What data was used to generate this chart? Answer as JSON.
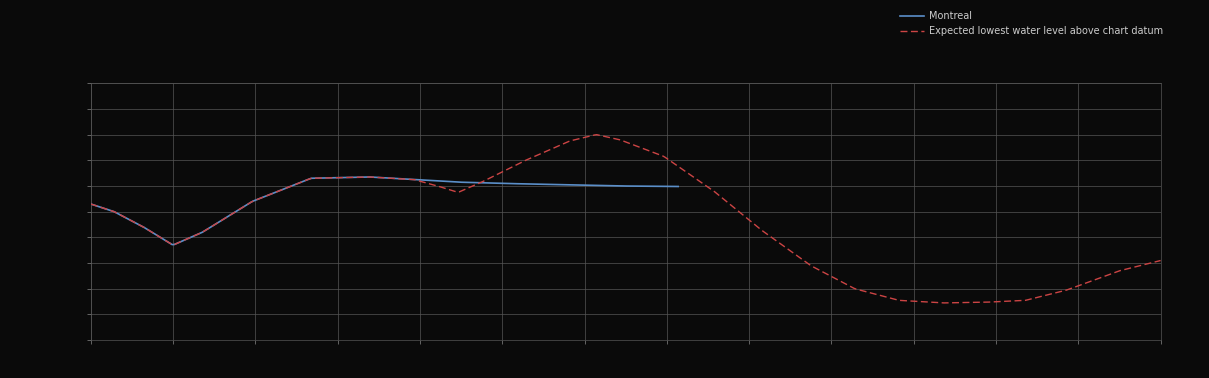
{
  "background_color": "#0a0a0a",
  "plot_bg_color": "#0a0a0a",
  "grid_color": "#555555",
  "text_color": "#cccccc",
  "fig_width": 12.09,
  "fig_height": 3.78,
  "dpi": 100,
  "xlim": [
    0,
    364
  ],
  "ylim": [
    0,
    1
  ],
  "line1_color": "#5b8fc9",
  "line2_color": "#cc4444",
  "line1_label": "Montreal",
  "line2_label": "Expected lowest water level above chart datum",
  "legend_fontsize": 7,
  "axis_label_color": "#888888",
  "blue_x": [
    0,
    8,
    18,
    28,
    38,
    55,
    75,
    95,
    110,
    125,
    140,
    160,
    180,
    200
  ],
  "blue_y": [
    0.53,
    0.5,
    0.44,
    0.37,
    0.42,
    0.54,
    0.63,
    0.635,
    0.625,
    0.615,
    0.61,
    0.605,
    0.6,
    0.598
  ],
  "red_x": [
    0,
    8,
    18,
    28,
    38,
    55,
    75,
    95,
    110,
    118,
    125,
    133,
    148,
    163,
    172,
    180,
    195,
    212,
    228,
    245,
    260,
    275,
    290,
    305,
    318,
    332,
    350,
    364
  ],
  "red_y": [
    0.53,
    0.5,
    0.44,
    0.37,
    0.42,
    0.54,
    0.63,
    0.635,
    0.625,
    0.6,
    0.575,
    0.615,
    0.7,
    0.775,
    0.8,
    0.78,
    0.715,
    0.58,
    0.43,
    0.29,
    0.2,
    0.155,
    0.145,
    0.148,
    0.155,
    0.195,
    0.27,
    0.31
  ]
}
